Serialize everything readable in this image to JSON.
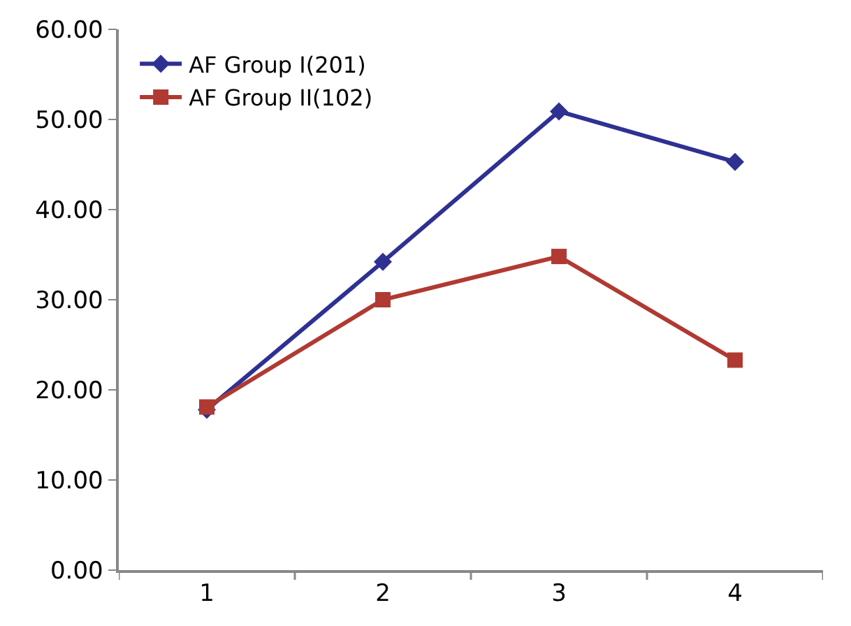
{
  "chart_data": {
    "type": "line",
    "categories": [
      "1",
      "2",
      "3",
      "4"
    ],
    "series": [
      {
        "name": "AF Group I(201)",
        "color": "#2e3192",
        "marker": "diamond",
        "values": [
          17.8,
          34.2,
          50.9,
          45.3
        ]
      },
      {
        "name": "AF Group II(102)",
        "color": "#b03a32",
        "marker": "square",
        "values": [
          18.1,
          30.0,
          34.8,
          23.3
        ]
      }
    ],
    "ylim": [
      0,
      60
    ],
    "yticks": [
      {
        "value": 0,
        "label": "0.00"
      },
      {
        "value": 10,
        "label": "10.00"
      },
      {
        "value": 20,
        "label": "20.00"
      },
      {
        "value": 30,
        "label": "30.00"
      },
      {
        "value": 40,
        "label": "40.00"
      },
      {
        "value": 50,
        "label": "50.00"
      },
      {
        "value": 60,
        "label": "60.00"
      }
    ],
    "legend": "top left",
    "line_style": "solid"
  }
}
